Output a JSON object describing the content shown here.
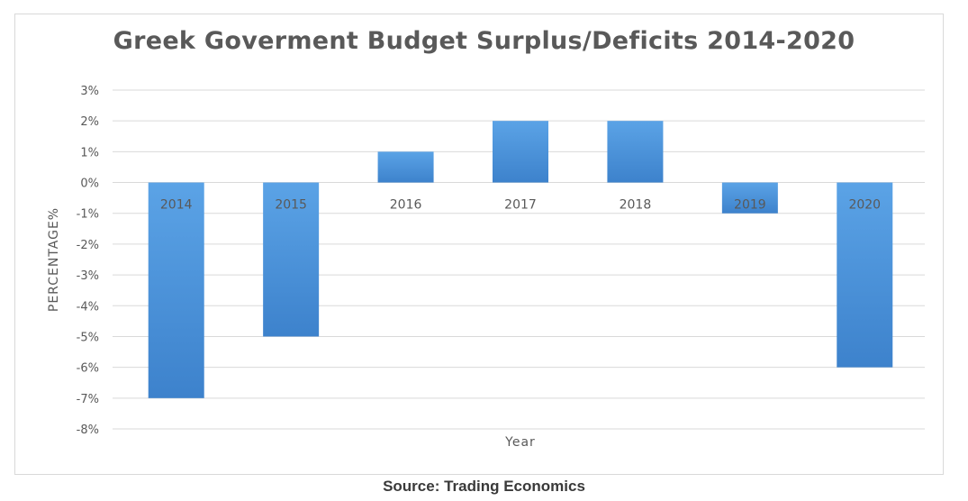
{
  "chart_data": {
    "type": "bar",
    "title": "Greek Goverment Budget Surplus/Deficits 2014-2020",
    "xlabel": "Year",
    "ylabel": "PERCENTAGE%",
    "categories": [
      "2014",
      "2015",
      "2016",
      "2017",
      "2018",
      "2019",
      "2020"
    ],
    "values": [
      -7,
      -5,
      1,
      2,
      2,
      -1,
      -6
    ],
    "ylim": [
      -8,
      3
    ],
    "yticks": [
      "3%",
      "2%",
      "1%",
      "0%",
      "-1%",
      "-2%",
      "-3%",
      "-4%",
      "-5%",
      "-6%",
      "-7%",
      "-8%"
    ],
    "grid": true,
    "bar_color": "#4a90d9"
  },
  "source": "Source: Trading Economics"
}
